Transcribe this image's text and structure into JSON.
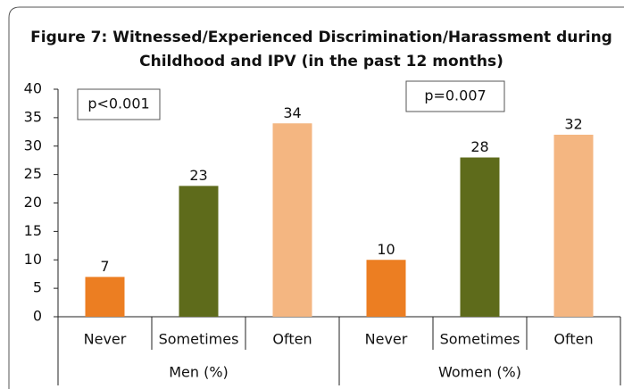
{
  "chart_data": {
    "type": "bar",
    "title": [
      "Figure 7: Witnessed/Experienced Discrimination/Harassment during",
      "Childhood and IPV (in the past 12 months)"
    ],
    "groups": [
      "Men (%)",
      "Women (%)"
    ],
    "series": [
      {
        "name": "Never",
        "color": "#ec7e22",
        "values": [
          7,
          10
        ]
      },
      {
        "name": "Sometimes",
        "color": "#5e6b1b",
        "values": [
          23,
          28
        ]
      },
      {
        "name": "Often",
        "color": "#f4b681",
        "values": [
          34,
          32
        ]
      }
    ],
    "annotations": [
      "p<0.001",
      "p=0.007"
    ],
    "ylim": [
      0,
      40
    ],
    "yticks": [
      0,
      5,
      10,
      15,
      20,
      25,
      30,
      35,
      40
    ],
    "grid": false
  }
}
